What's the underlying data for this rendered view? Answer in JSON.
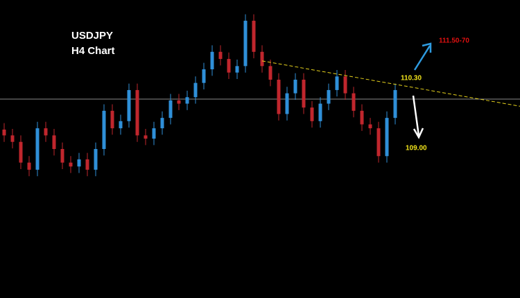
{
  "chart_data": {
    "type": "candlestick",
    "title": "USDJPY",
    "subtitle": "H4 Chart",
    "ylim": [
      107.0,
      111.6
    ],
    "up_color": "#2f8fd8",
    "down_color": "#c0262d",
    "open": [
      109.6,
      109.51,
      109.41,
      109.09,
      108.98,
      109.62,
      109.51,
      109.3,
      109.09,
      109.03,
      109.14,
      108.98,
      109.3,
      109.89,
      109.62,
      109.73,
      110.21,
      109.51,
      109.46,
      109.62,
      109.78,
      110.05,
      110.0,
      110.1,
      110.32,
      110.53,
      110.8,
      110.69,
      110.48,
      110.58,
      111.28,
      110.8,
      110.58,
      110.37,
      109.84,
      110.16,
      110.37,
      109.94,
      109.73,
      110.0,
      110.21,
      110.42,
      110.16,
      109.89,
      109.68,
      109.62,
      109.19,
      109.78
    ],
    "high": [
      109.7,
      109.61,
      109.51,
      109.19,
      109.72,
      109.72,
      109.61,
      109.4,
      109.19,
      109.24,
      109.24,
      109.4,
      109.99,
      109.99,
      109.83,
      110.31,
      110.31,
      109.61,
      109.72,
      109.88,
      110.15,
      110.15,
      110.2,
      110.42,
      110.63,
      110.9,
      110.9,
      110.79,
      110.68,
      111.38,
      111.38,
      110.9,
      110.68,
      110.47,
      110.26,
      110.47,
      110.47,
      110.04,
      110.1,
      110.31,
      110.52,
      110.52,
      110.26,
      109.99,
      109.78,
      109.72,
      109.88,
      110.31
    ],
    "low": [
      109.41,
      109.31,
      108.99,
      108.88,
      108.88,
      109.41,
      109.2,
      108.99,
      108.93,
      108.93,
      108.88,
      108.88,
      109.2,
      109.52,
      109.52,
      109.63,
      109.41,
      109.36,
      109.36,
      109.52,
      109.68,
      109.9,
      109.9,
      110.0,
      110.22,
      110.43,
      110.59,
      110.38,
      110.38,
      110.48,
      110.7,
      110.48,
      110.27,
      109.74,
      109.74,
      110.06,
      109.84,
      109.63,
      109.63,
      109.9,
      110.11,
      110.06,
      109.79,
      109.58,
      109.52,
      109.09,
      109.09,
      109.68
    ],
    "close": [
      109.51,
      109.41,
      109.09,
      108.98,
      109.62,
      109.51,
      109.3,
      109.09,
      109.03,
      109.14,
      108.98,
      109.3,
      109.89,
      109.62,
      109.73,
      110.21,
      109.51,
      109.46,
      109.62,
      109.78,
      110.05,
      110.0,
      110.1,
      110.32,
      110.53,
      110.8,
      110.69,
      110.48,
      110.58,
      111.28,
      110.8,
      110.58,
      110.37,
      109.84,
      110.16,
      110.37,
      109.94,
      109.73,
      110.0,
      110.21,
      110.42,
      110.16,
      109.89,
      109.68,
      109.62,
      109.19,
      109.78,
      110.21
    ],
    "price_line": 110.07,
    "trendline": {
      "x": [
        31,
        62
      ],
      "y": [
        110.66,
        109.96
      ],
      "color": "#e6d21c"
    },
    "annotations": [
      {
        "text": "111.50-70",
        "color": "#e01010"
      },
      {
        "text": "110.30",
        "color": "#f2e41a"
      },
      {
        "text": "109.00",
        "color": "#f2e41a"
      }
    ]
  }
}
